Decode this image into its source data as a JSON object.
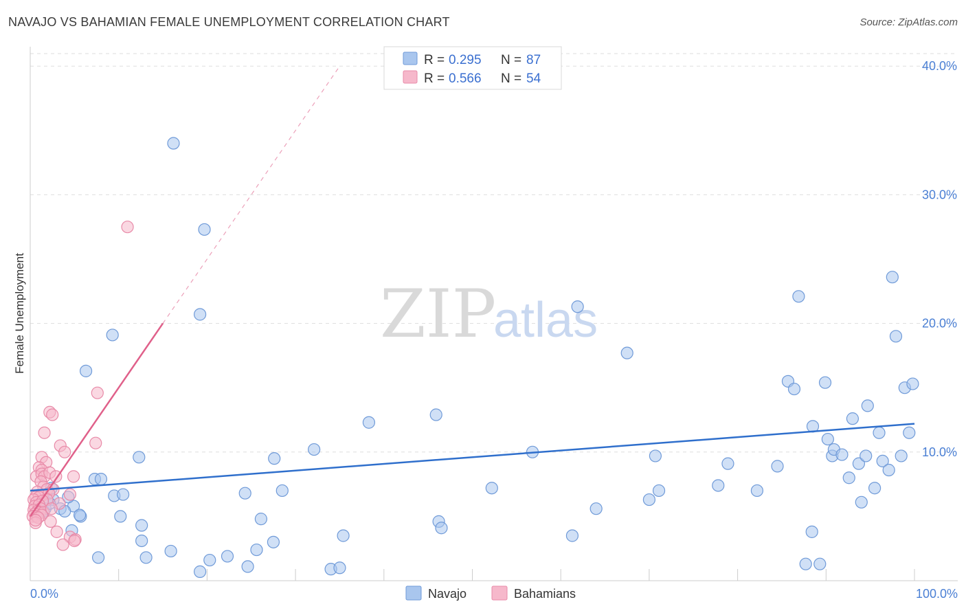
{
  "title": "NAVAJO VS BAHAMIAN FEMALE UNEMPLOYMENT CORRELATION CHART",
  "source": "Source: ZipAtlas.com",
  "watermark": {
    "zip": "ZIP",
    "atlas": "atlas"
  },
  "colors": {
    "navajo_fill": "#a9c6ee",
    "navajo_stroke": "#6f9ad8",
    "navajo_line": "#2f6fcc",
    "bahamian_fill": "#f6b8cb",
    "bahamian_stroke": "#e88aa8",
    "bahamian_line": "#e0608a",
    "tick": "#4a7fd4",
    "grid": "#dddddd"
  },
  "legend": {
    "navajo": {
      "r_label": "R = ",
      "r_value": "0.295",
      "n_label": "N = ",
      "n_value": "87"
    },
    "bahamian": {
      "r_label": "R = ",
      "r_value": "0.566",
      "n_label": "N = ",
      "n_value": "54"
    }
  },
  "chart_data": {
    "type": "scatter",
    "title": "NAVAJO VS BAHAMIAN FEMALE UNEMPLOYMENT CORRELATION CHART",
    "xlabel": "",
    "ylabel": "Female Unemployment",
    "xlim": [
      0,
      100
    ],
    "ylim": [
      0,
      40
    ],
    "x_tick_labels": [
      "0.0%",
      "100.0%"
    ],
    "y_ticks": [
      10,
      20,
      30,
      40
    ],
    "y_tick_labels": [
      "10.0%",
      "20.0%",
      "30.0%",
      "40.0%"
    ],
    "legend_labels": [
      "Navajo",
      "Bahamians"
    ],
    "series": [
      {
        "name": "Navajo",
        "trend": {
          "x": [
            0,
            100
          ],
          "y": [
            7.0,
            12.2
          ]
        },
        "points": [
          [
            16.2,
            34.0
          ],
          [
            19.7,
            27.3
          ],
          [
            19.2,
            20.7
          ],
          [
            9.3,
            19.1
          ],
          [
            6.3,
            16.3
          ],
          [
            4.9,
            5.8
          ],
          [
            4.3,
            6.5
          ],
          [
            2.6,
            6.3
          ],
          [
            1.7,
            5.6
          ],
          [
            2.4,
            7.2
          ],
          [
            7.3,
            7.9
          ],
          [
            8.0,
            7.9
          ],
          [
            9.5,
            6.6
          ],
          [
            12.3,
            9.6
          ],
          [
            10.5,
            6.7
          ],
          [
            10.2,
            5.0
          ],
          [
            5.7,
            5.0
          ],
          [
            4.7,
            3.9
          ],
          [
            12.6,
            4.3
          ],
          [
            12.6,
            3.1
          ],
          [
            7.7,
            1.8
          ],
          [
            13.1,
            1.8
          ],
          [
            15.9,
            2.3
          ],
          [
            19.2,
            0.7
          ],
          [
            20.3,
            1.6
          ],
          [
            22.3,
            1.9
          ],
          [
            24.3,
            6.8
          ],
          [
            24.6,
            1.1
          ],
          [
            25.6,
            2.4
          ],
          [
            26.1,
            4.8
          ],
          [
            27.5,
            3.0
          ],
          [
            27.6,
            9.5
          ],
          [
            28.5,
            7.0
          ],
          [
            32.1,
            10.2
          ],
          [
            34.0,
            0.9
          ],
          [
            35.0,
            1.0
          ],
          [
            35.4,
            3.5
          ],
          [
            38.3,
            12.3
          ],
          [
            45.9,
            12.9
          ],
          [
            46.2,
            4.6
          ],
          [
            46.5,
            4.1
          ],
          [
            52.2,
            7.2
          ],
          [
            56.8,
            10.0
          ],
          [
            61.3,
            3.5
          ],
          [
            61.9,
            21.3
          ],
          [
            64.0,
            5.6
          ],
          [
            67.5,
            17.7
          ],
          [
            70.0,
            6.3
          ],
          [
            70.7,
            9.7
          ],
          [
            71.1,
            7.0
          ],
          [
            77.8,
            7.4
          ],
          [
            78.9,
            9.1
          ],
          [
            82.2,
            7.0
          ],
          [
            84.5,
            8.9
          ],
          [
            85.7,
            15.5
          ],
          [
            86.4,
            14.9
          ],
          [
            86.9,
            22.1
          ],
          [
            87.7,
            1.3
          ],
          [
            88.4,
            3.8
          ],
          [
            88.5,
            12.0
          ],
          [
            89.3,
            1.3
          ],
          [
            89.9,
            15.4
          ],
          [
            90.2,
            11.0
          ],
          [
            90.7,
            9.7
          ],
          [
            90.9,
            10.2
          ],
          [
            91.8,
            9.8
          ],
          [
            92.6,
            8.0
          ],
          [
            93.0,
            12.6
          ],
          [
            93.7,
            9.1
          ],
          [
            94.0,
            6.1
          ],
          [
            94.5,
            9.7
          ],
          [
            94.7,
            13.6
          ],
          [
            95.5,
            7.2
          ],
          [
            96.0,
            11.5
          ],
          [
            96.4,
            9.3
          ],
          [
            97.1,
            8.6
          ],
          [
            97.5,
            23.6
          ],
          [
            97.9,
            19.0
          ],
          [
            98.5,
            9.7
          ],
          [
            98.9,
            15.0
          ],
          [
            99.4,
            11.5
          ],
          [
            99.8,
            15.3
          ],
          [
            1.5,
            5.4
          ],
          [
            2.2,
            6.0
          ],
          [
            3.4,
            5.6
          ],
          [
            5.6,
            5.1
          ],
          [
            3.9,
            5.4
          ]
        ]
      },
      {
        "name": "Bahamians",
        "trend": {
          "x": [
            0,
            35
          ],
          "y": [
            5.0,
            40.0
          ],
          "solid_until_x": 15.0
        },
        "points": [
          [
            11.0,
            27.5
          ],
          [
            7.6,
            14.6
          ],
          [
            2.2,
            13.1
          ],
          [
            2.5,
            12.9
          ],
          [
            1.6,
            11.5
          ],
          [
            7.4,
            10.7
          ],
          [
            3.4,
            10.5
          ],
          [
            3.9,
            10.0
          ],
          [
            1.3,
            9.6
          ],
          [
            1.8,
            9.2
          ],
          [
            1.0,
            8.8
          ],
          [
            1.3,
            8.6
          ],
          [
            0.7,
            8.1
          ],
          [
            1.3,
            8.3
          ],
          [
            1.6,
            8.1
          ],
          [
            2.2,
            8.4
          ],
          [
            2.9,
            8.1
          ],
          [
            4.9,
            8.1
          ],
          [
            1.2,
            7.7
          ],
          [
            1.5,
            7.3
          ],
          [
            1.9,
            7.1
          ],
          [
            2.6,
            7.1
          ],
          [
            0.8,
            6.9
          ],
          [
            1.3,
            6.6
          ],
          [
            2.1,
            6.8
          ],
          [
            4.5,
            6.7
          ],
          [
            0.6,
            6.5
          ],
          [
            1.0,
            6.5
          ],
          [
            1.9,
            6.3
          ],
          [
            0.4,
            6.3
          ],
          [
            0.7,
            6.1
          ],
          [
            1.4,
            6.2
          ],
          [
            3.3,
            6.0
          ],
          [
            0.5,
            5.8
          ],
          [
            1.0,
            5.9
          ],
          [
            1.2,
            5.6
          ],
          [
            0.4,
            5.5
          ],
          [
            0.8,
            5.4
          ],
          [
            1.1,
            5.3
          ],
          [
            0.5,
            5.2
          ],
          [
            1.5,
            5.3
          ],
          [
            0.3,
            5.0
          ],
          [
            0.7,
            5.0
          ],
          [
            1.3,
            5.1
          ],
          [
            0.9,
            4.9
          ],
          [
            2.4,
            5.6
          ],
          [
            0.6,
            4.5
          ],
          [
            2.3,
            4.6
          ],
          [
            0.6,
            4.7
          ],
          [
            3.0,
            3.8
          ],
          [
            4.5,
            3.4
          ],
          [
            5.1,
            3.2
          ],
          [
            3.7,
            2.8
          ],
          [
            5.0,
            3.1
          ]
        ]
      }
    ]
  }
}
